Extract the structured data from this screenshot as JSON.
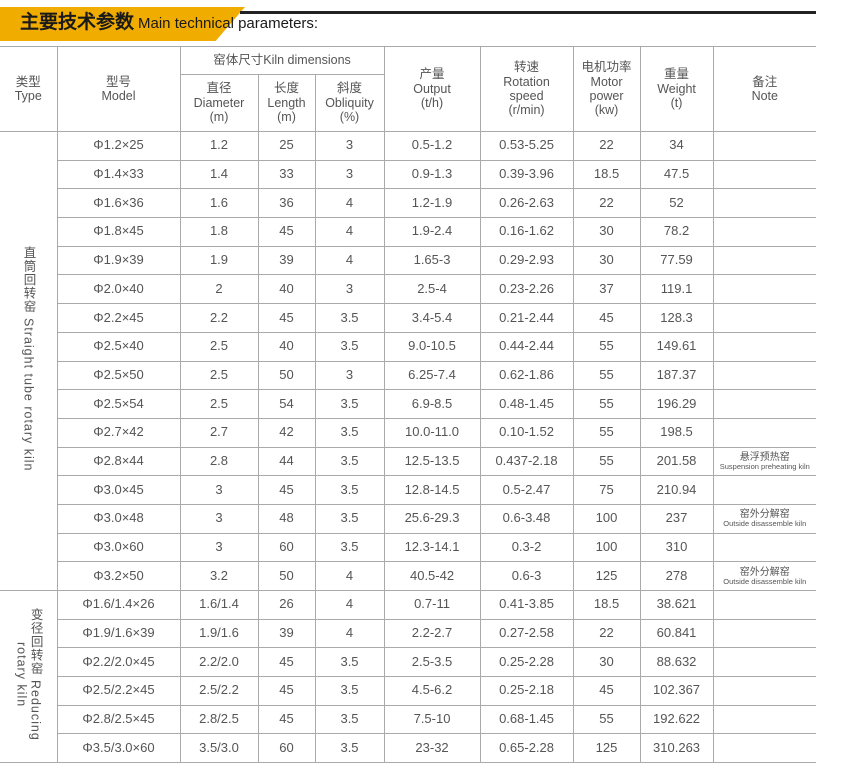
{
  "header": {
    "title_cn": "主要技术参数",
    "title_en": "Main technical parameters:"
  },
  "columns": {
    "type": "类型\nType",
    "model": "型号\nModel",
    "kiln_dims": "窑体尺寸Kiln dimensions",
    "diameter": "直径\nDiameter\n(m)",
    "length": "长度\nLength\n(m)",
    "obliquity": "斜度\nObliquity\n(%)",
    "output": "产量\nOutput\n(t/h)",
    "rotation": "转速\nRotation\nspeed\n(r/min)",
    "motor": "电机功率\nMotor\npower\n(kw)",
    "weight": "重量\nWeight\n(t)",
    "note": "备注\nNote"
  },
  "groups": [
    {
      "label": "直筒回转窑 Straight tube rotary kiln",
      "rows": [
        [
          "Φ1.2×25",
          "1.2",
          "25",
          "3",
          "0.5-1.2",
          "0.53-5.25",
          "22",
          "34",
          "",
          ""
        ],
        [
          "Φ1.4×33",
          "1.4",
          "33",
          "3",
          "0.9-1.3",
          "0.39-3.96",
          "18.5",
          "47.5",
          "",
          ""
        ],
        [
          "Φ1.6×36",
          "1.6",
          "36",
          "4",
          "1.2-1.9",
          "0.26-2.63",
          "22",
          "52",
          "",
          ""
        ],
        [
          "Φ1.8×45",
          "1.8",
          "45",
          "4",
          "1.9-2.4",
          "0.16-1.62",
          "30",
          "78.2",
          "",
          ""
        ],
        [
          "Φ1.9×39",
          "1.9",
          "39",
          "4",
          "1.65-3",
          "0.29-2.93",
          "30",
          "77.59",
          "",
          ""
        ],
        [
          "Φ2.0×40",
          "2",
          "40",
          "3",
          "2.5-4",
          "0.23-2.26",
          "37",
          "119.1",
          "",
          ""
        ],
        [
          "Φ2.2×45",
          "2.2",
          "45",
          "3.5",
          "3.4-5.4",
          "0.21-2.44",
          "45",
          "128.3",
          "",
          ""
        ],
        [
          "Φ2.5×40",
          "2.5",
          "40",
          "3.5",
          "9.0-10.5",
          "0.44-2.44",
          "55",
          "149.61",
          "",
          ""
        ],
        [
          "Φ2.5×50",
          "2.5",
          "50",
          "3",
          "6.25-7.4",
          "0.62-1.86",
          "55",
          "187.37",
          "",
          ""
        ],
        [
          "Φ2.5×54",
          "2.5",
          "54",
          "3.5",
          "6.9-8.5",
          "0.48-1.45",
          "55",
          "196.29",
          "",
          ""
        ],
        [
          "Φ2.7×42",
          "2.7",
          "42",
          "3.5",
          "10.0-11.0",
          "0.10-1.52",
          "55",
          "198.5",
          "",
          ""
        ],
        [
          "Φ2.8×44",
          "2.8",
          "44",
          "3.5",
          "12.5-13.5",
          "0.437-2.18",
          "55",
          "201.58",
          "悬浮预热窑",
          "Suspension preheating kiln"
        ],
        [
          "Φ3.0×45",
          "3",
          "45",
          "3.5",
          "12.8-14.5",
          "0.5-2.47",
          "75",
          "210.94",
          "",
          ""
        ],
        [
          "Φ3.0×48",
          "3",
          "48",
          "3.5",
          "25.6-29.3",
          "0.6-3.48",
          "100",
          "237",
          "窑外分解窑",
          "Outside disassemble kiln"
        ],
        [
          "Φ3.0×60",
          "3",
          "60",
          "3.5",
          "12.3-14.1",
          "0.3-2",
          "100",
          "310",
          "",
          ""
        ],
        [
          "Φ3.2×50",
          "3.2",
          "50",
          "4",
          "40.5-42",
          "0.6-3",
          "125",
          "278",
          "窑外分解窑",
          "Outside disassemble kiln"
        ]
      ]
    },
    {
      "label": "变径回转窑 Reducing rotary kiln",
      "rows": [
        [
          "Φ1.6/1.4×26",
          "1.6/1.4",
          "26",
          "4",
          "0.7-11",
          "0.41-3.85",
          "18.5",
          "38.621",
          "",
          ""
        ],
        [
          "Φ1.9/1.6×39",
          "1.9/1.6",
          "39",
          "4",
          "2.2-2.7",
          "0.27-2.58",
          "22",
          "60.841",
          "",
          ""
        ],
        [
          "Φ2.2/2.0×45",
          "2.2/2.0",
          "45",
          "3.5",
          "2.5-3.5",
          "0.25-2.28",
          "30",
          "88.632",
          "",
          ""
        ],
        [
          "Φ2.5/2.2×45",
          "2.5/2.2",
          "45",
          "3.5",
          "4.5-6.2",
          "0.25-2.18",
          "45",
          "102.367",
          "",
          ""
        ],
        [
          "Φ2.8/2.5×45",
          "2.8/2.5",
          "45",
          "3.5",
          "7.5-10",
          "0.68-1.45",
          "55",
          "192.622",
          "",
          ""
        ],
        [
          "Φ3.5/3.0×60",
          "3.5/3.0",
          "60",
          "3.5",
          "23-32",
          "0.65-2.28",
          "125",
          "310.263",
          "",
          ""
        ]
      ]
    }
  ]
}
